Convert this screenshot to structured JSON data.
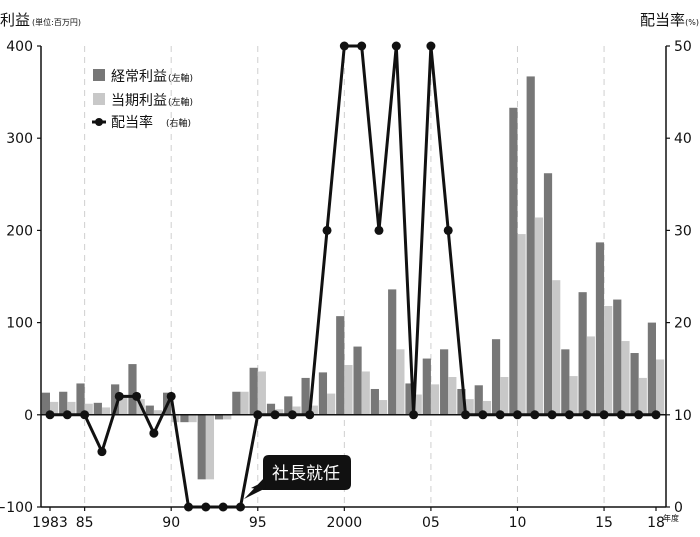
{
  "chart_data": {
    "type": "bar",
    "left_axis_title": "利益",
    "left_axis_unit": "(単位:百万円)",
    "right_axis_title": "配当率",
    "right_axis_unit": "(%)",
    "x_unit_label": "年度",
    "x_tick_labels": [
      {
        "x": 1983,
        "label": "1983"
      },
      {
        "x": 1985,
        "label": "85"
      },
      {
        "x": 1990,
        "label": "90"
      },
      {
        "x": 1995,
        "label": "95"
      },
      {
        "x": 2000,
        "label": "2000"
      },
      {
        "x": 2005,
        "label": "05"
      },
      {
        "x": 2010,
        "label": "10"
      },
      {
        "x": 2015,
        "label": "15"
      },
      {
        "x": 2018,
        "label": "18"
      }
    ],
    "left_ylim": [
      -100,
      400
    ],
    "left_yticks": [
      "400",
      "300",
      "200",
      "100",
      "0",
      "−100"
    ],
    "right_ylim": [
      0,
      50
    ],
    "right_yticks": [
      "50",
      "40",
      "30",
      "20",
      "10",
      "0"
    ],
    "grid_x_years": [
      1985,
      1990,
      1995,
      2000,
      2005,
      2010,
      2015
    ],
    "legend_position": "top-left",
    "years": [
      1983,
      1984,
      1985,
      1986,
      1987,
      1988,
      1989,
      1990,
      1991,
      1992,
      1993,
      1994,
      1995,
      1996,
      1997,
      1998,
      1999,
      2000,
      2001,
      2002,
      2003,
      2004,
      2005,
      2006,
      2007,
      2008,
      2009,
      2010,
      2011,
      2012,
      2013,
      2014,
      2015,
      2016,
      2017,
      2018
    ],
    "series": [
      {
        "name": "経常利益",
        "name_note": "(左軸)",
        "color": "#777777",
        "axis": "left",
        "values": [
          24,
          25,
          34,
          13,
          33,
          55,
          10,
          24,
          -8,
          -70,
          -5,
          25,
          51,
          12,
          20,
          40,
          46,
          107,
          74,
          28,
          136,
          34,
          61,
          71,
          28,
          32,
          82,
          333,
          367,
          262,
          71,
          133,
          187,
          125,
          67,
          100
        ]
      },
      {
        "name": "当期利益",
        "name_note": "(左軸)",
        "color": "#c8c8c8",
        "axis": "left",
        "values": [
          14,
          14,
          12,
          8,
          20,
          17,
          5,
          -8,
          -8,
          -70,
          -5,
          25,
          47,
          6,
          9,
          10,
          23,
          54,
          47,
          16,
          71,
          22,
          33,
          41,
          17,
          15,
          41,
          196,
          214,
          146,
          42,
          85,
          118,
          80,
          40,
          60
        ]
      },
      {
        "name": "配当率",
        "name_note": "(右軸)",
        "color": "#111111",
        "axis": "right",
        "type": "line",
        "values": [
          10,
          10,
          10,
          6,
          12,
          12,
          8,
          12,
          0,
          0,
          0,
          0,
          10,
          10,
          10,
          10,
          30,
          50,
          50,
          30,
          50,
          10,
          50,
          30,
          10,
          10,
          10,
          10,
          10,
          10,
          10,
          10,
          10,
          10,
          10,
          10
        ]
      }
    ],
    "annotation": {
      "text": "社長就任",
      "x": 1994
    }
  }
}
